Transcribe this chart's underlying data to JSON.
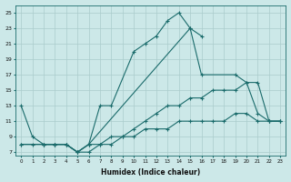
{
  "title": "",
  "xlabel": "Humidex (Indice chaleur)",
  "background_color": "#cce8e8",
  "grid_color": "#aacccc",
  "line_color": "#1a6b6b",
  "xlim": [
    -0.5,
    23.5
  ],
  "ylim": [
    6.5,
    26
  ],
  "xticks": [
    0,
    1,
    2,
    3,
    4,
    5,
    6,
    7,
    8,
    9,
    10,
    11,
    12,
    13,
    14,
    15,
    16,
    17,
    18,
    19,
    20,
    21,
    22,
    23
  ],
  "yticks": [
    7,
    9,
    11,
    13,
    15,
    17,
    19,
    21,
    23,
    25
  ],
  "series": [
    {
      "x": [
        0,
        1,
        2,
        3,
        4,
        5,
        6,
        7,
        8,
        10,
        11,
        12,
        13,
        14,
        15,
        16,
        19,
        20,
        21,
        22,
        23
      ],
      "y": [
        13,
        9,
        8,
        8,
        8,
        7,
        8,
        13,
        13,
        20,
        21,
        22,
        24,
        25,
        23,
        17,
        17,
        16,
        12,
        11,
        11
      ]
    },
    {
      "x": [
        2,
        3,
        4,
        5,
        6,
        15,
        16
      ],
      "y": [
        8,
        8,
        8,
        7,
        8,
        23,
        22
      ]
    },
    {
      "x": [
        0,
        2,
        3,
        4,
        5,
        6,
        7,
        8,
        9,
        10,
        11,
        12,
        13,
        14,
        15,
        16,
        17,
        18,
        19,
        20,
        21,
        22,
        23
      ],
      "y": [
        8,
        8,
        8,
        8,
        7,
        7,
        8,
        8,
        9,
        10,
        11,
        12,
        13,
        13,
        14,
        14,
        15,
        15,
        15,
        16,
        16,
        11,
        11
      ]
    },
    {
      "x": [
        0,
        1,
        2,
        3,
        4,
        5,
        6,
        7,
        8,
        9,
        10,
        11,
        12,
        13,
        14,
        15,
        16,
        17,
        18,
        19,
        20,
        21,
        22,
        23
      ],
      "y": [
        8,
        8,
        8,
        8,
        8,
        7,
        8,
        8,
        9,
        9,
        9,
        10,
        10,
        10,
        11,
        11,
        11,
        11,
        11,
        12,
        12,
        11,
        11,
        11
      ]
    }
  ]
}
